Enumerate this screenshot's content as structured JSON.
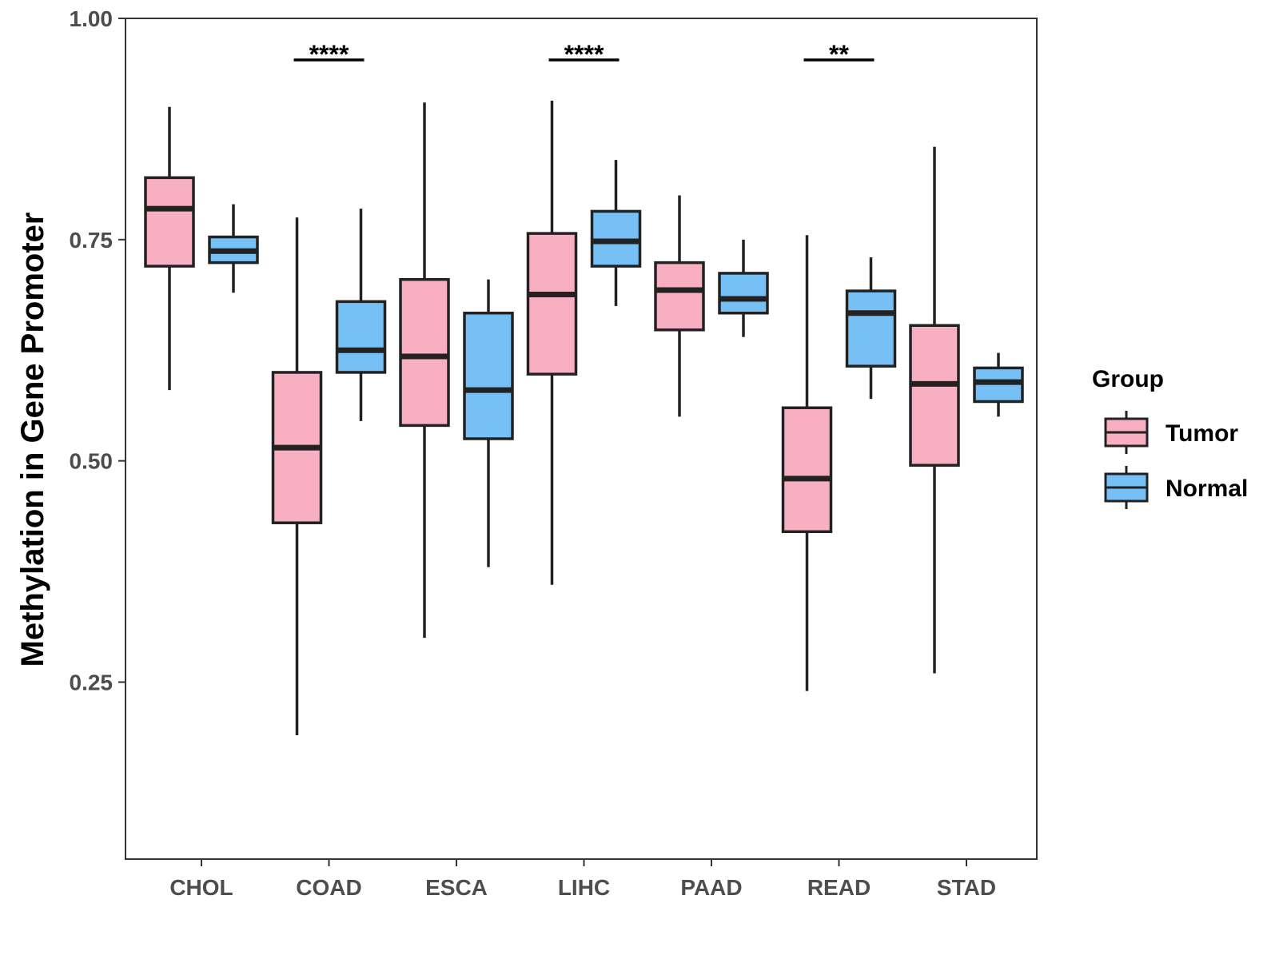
{
  "chart_data": {
    "type": "boxplot",
    "title": "",
    "xlabel": "",
    "ylabel": "Methylation in Gene Promoter",
    "ylim": [
      0.05,
      1.0
    ],
    "yticks": [
      0.25,
      0.5,
      0.75,
      1.0
    ],
    "ytick_labels": [
      "0.25",
      "0.50",
      "0.75",
      "1.00"
    ],
    "grid": false,
    "legend": {
      "title": "Group",
      "position": "right",
      "entries": [
        {
          "name": "Tumor",
          "color": "#F8AFC2"
        },
        {
          "name": "Normal",
          "color": "#76C0F5"
        }
      ]
    },
    "categories": [
      "CHOL",
      "COAD",
      "ESCA",
      "LIHC",
      "PAAD",
      "READ",
      "STAD"
    ],
    "series": [
      {
        "name": "Tumor",
        "color": "#F8AFC2",
        "boxes": [
          {
            "min": 0.58,
            "q1": 0.72,
            "median": 0.785,
            "q3": 0.82,
            "max": 0.9
          },
          {
            "min": 0.19,
            "q1": 0.43,
            "median": 0.515,
            "q3": 0.6,
            "max": 0.775
          },
          {
            "min": 0.3,
            "q1": 0.54,
            "median": 0.618,
            "q3": 0.705,
            "max": 0.905
          },
          {
            "min": 0.36,
            "q1": 0.598,
            "median": 0.688,
            "q3": 0.757,
            "max": 0.907
          },
          {
            "min": 0.55,
            "q1": 0.648,
            "median": 0.693,
            "q3": 0.724,
            "max": 0.8
          },
          {
            "min": 0.24,
            "q1": 0.42,
            "median": 0.48,
            "q3": 0.56,
            "max": 0.755
          },
          {
            "min": 0.26,
            "q1": 0.495,
            "median": 0.587,
            "q3": 0.653,
            "max": 0.855
          }
        ]
      },
      {
        "name": "Normal",
        "color": "#76C0F5",
        "boxes": [
          {
            "min": 0.69,
            "q1": 0.724,
            "median": 0.737,
            "q3": 0.753,
            "max": 0.79
          },
          {
            "min": 0.545,
            "q1": 0.6,
            "median": 0.625,
            "q3": 0.68,
            "max": 0.785
          },
          {
            "min": 0.38,
            "q1": 0.525,
            "median": 0.58,
            "q3": 0.667,
            "max": 0.705
          },
          {
            "min": 0.675,
            "q1": 0.72,
            "median": 0.748,
            "q3": 0.782,
            "max": 0.84
          },
          {
            "min": 0.64,
            "q1": 0.667,
            "median": 0.683,
            "q3": 0.712,
            "max": 0.75
          },
          {
            "min": 0.57,
            "q1": 0.607,
            "median": 0.667,
            "q3": 0.692,
            "max": 0.73
          },
          {
            "min": 0.55,
            "q1": 0.567,
            "median": 0.589,
            "q3": 0.605,
            "max": 0.622
          }
        ]
      }
    ],
    "annotations": [
      {
        "category": "COAD",
        "label": "****"
      },
      {
        "category": "LIHC",
        "label": "****"
      },
      {
        "category": "READ",
        "label": "**"
      }
    ]
  }
}
